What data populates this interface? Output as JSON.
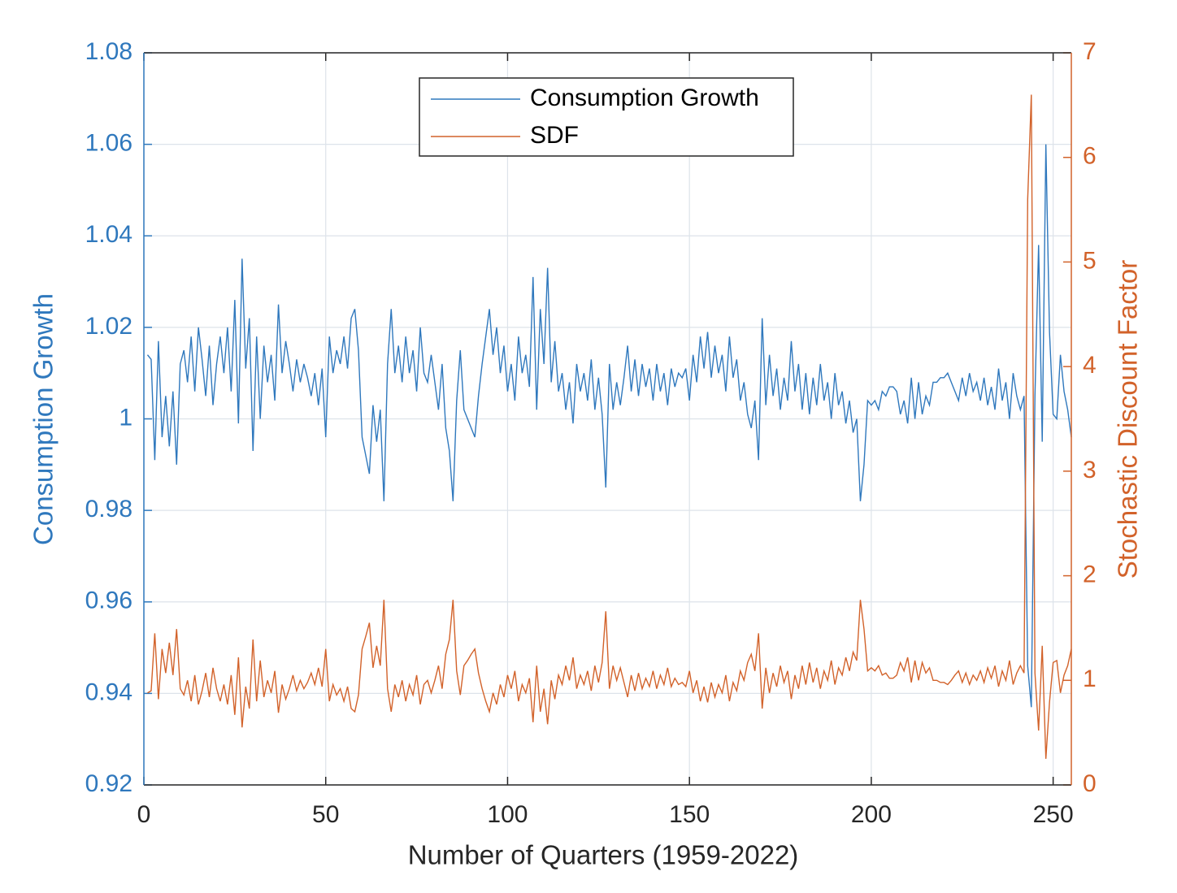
{
  "chart_data": {
    "type": "line",
    "xlabel": "Number of Quarters (1959-2022)",
    "ylabel": "Consumption Growth",
    "y2label": "Stochastic Discount Factor",
    "xlim": [
      0,
      255
    ],
    "xticks": [
      0,
      50,
      100,
      150,
      200,
      250
    ],
    "ylim": [
      0.92,
      1.08
    ],
    "yticks": [
      0.92,
      0.94,
      0.96,
      0.98,
      1,
      1.02,
      1.04,
      1.06,
      1.08
    ],
    "y2lim": [
      0,
      7
    ],
    "y2ticks": [
      0,
      1,
      2,
      3,
      4,
      5,
      6,
      7
    ],
    "grid": true,
    "legend": "top",
    "x": [
      1,
      2,
      3,
      4,
      5,
      6,
      7,
      8,
      9,
      10,
      11,
      12,
      13,
      14,
      15,
      16,
      17,
      18,
      19,
      20,
      21,
      22,
      23,
      24,
      25,
      26,
      27,
      28,
      29,
      30,
      31,
      32,
      33,
      34,
      35,
      36,
      37,
      38,
      39,
      40,
      41,
      42,
      43,
      44,
      45,
      46,
      47,
      48,
      49,
      50,
      51,
      52,
      53,
      54,
      55,
      56,
      57,
      58,
      59,
      60,
      61,
      62,
      63,
      64,
      65,
      66,
      67,
      68,
      69,
      70,
      71,
      72,
      73,
      74,
      75,
      76,
      77,
      78,
      79,
      80,
      81,
      82,
      83,
      84,
      85,
      86,
      87,
      88,
      89,
      90,
      91,
      92,
      93,
      94,
      95,
      96,
      97,
      98,
      99,
      100,
      101,
      102,
      103,
      104,
      105,
      106,
      107,
      108,
      109,
      110,
      111,
      112,
      113,
      114,
      115,
      116,
      117,
      118,
      119,
      120,
      121,
      122,
      123,
      124,
      125,
      126,
      127,
      128,
      129,
      130,
      131,
      132,
      133,
      134,
      135,
      136,
      137,
      138,
      139,
      140,
      141,
      142,
      143,
      144,
      145,
      146,
      147,
      148,
      149,
      150,
      151,
      152,
      153,
      154,
      155,
      156,
      157,
      158,
      159,
      160,
      161,
      162,
      163,
      164,
      165,
      166,
      167,
      168,
      169,
      170,
      171,
      172,
      173,
      174,
      175,
      176,
      177,
      178,
      179,
      180,
      181,
      182,
      183,
      184,
      185,
      186,
      187,
      188,
      189,
      190,
      191,
      192,
      193,
      194,
      195,
      196,
      197,
      198,
      199,
      200,
      201,
      202,
      203,
      204,
      205,
      206,
      207,
      208,
      209,
      210,
      211,
      212,
      213,
      214,
      215,
      216,
      217,
      218,
      219,
      220,
      221,
      222,
      223,
      224,
      225,
      226,
      227,
      228,
      229,
      230,
      231,
      232,
      233,
      234,
      235,
      236,
      237,
      238,
      239,
      240,
      241,
      242,
      243,
      244,
      245,
      246,
      247,
      248,
      249,
      250,
      251,
      252,
      253,
      254,
      255
    ],
    "series": [
      {
        "name": "Consumption Growth",
        "color": "#2f78bd",
        "values": [
          1.014,
          1.013,
          0.991,
          1.017,
          0.996,
          1.005,
          0.994,
          1.006,
          0.99,
          1.012,
          1.015,
          1.008,
          1.018,
          1.006,
          1.02,
          1.013,
          1.005,
          1.016,
          1.003,
          1.012,
          1.018,
          1.01,
          1.02,
          1.006,
          1.026,
          0.999,
          1.035,
          1.011,
          1.022,
          0.993,
          1.018,
          1.0,
          1.016,
          1.008,
          1.014,
          1.004,
          1.025,
          1.01,
          1.017,
          1.012,
          1.006,
          1.013,
          1.008,
          1.012,
          1.009,
          1.005,
          1.01,
          1.003,
          1.011,
          0.996,
          1.018,
          1.01,
          1.015,
          1.012,
          1.018,
          1.011,
          1.022,
          1.024,
          1.015,
          0.996,
          0.992,
          0.988,
          1.003,
          0.995,
          1.002,
          0.982,
          1.012,
          1.024,
          1.01,
          1.016,
          1.008,
          1.018,
          1.01,
          1.015,
          1.006,
          1.02,
          1.01,
          1.008,
          1.014,
          1.008,
          1.002,
          1.012,
          0.998,
          0.993,
          0.982,
          1.004,
          1.015,
          1.002,
          1.0,
          0.998,
          0.996,
          1.005,
          1.012,
          1.018,
          1.024,
          1.014,
          1.02,
          1.01,
          1.016,
          1.006,
          1.012,
          1.004,
          1.018,
          1.01,
          1.014,
          1.007,
          1.031,
          1.002,
          1.024,
          1.012,
          1.033,
          1.008,
          1.017,
          1.006,
          1.01,
          1.002,
          1.008,
          0.999,
          1.012,
          1.006,
          1.01,
          1.004,
          1.013,
          1.002,
          1.009,
          1.001,
          0.985,
          1.012,
          1.002,
          1.008,
          1.003,
          1.009,
          1.016,
          1.006,
          1.013,
          1.005,
          1.012,
          1.007,
          1.011,
          1.004,
          1.012,
          1.006,
          1.01,
          1.003,
          1.011,
          1.007,
          1.01,
          1.009,
          1.011,
          1.004,
          1.014,
          1.008,
          1.018,
          1.011,
          1.019,
          1.009,
          1.016,
          1.01,
          1.014,
          1.006,
          1.018,
          1.009,
          1.013,
          1.004,
          1.008,
          1.001,
          0.998,
          1.004,
          0.991,
          1.022,
          1.003,
          1.014,
          1.005,
          1.011,
          1.002,
          1.009,
          1.004,
          1.017,
          1.006,
          1.012,
          1.002,
          1.01,
          1.001,
          1.009,
          1.003,
          1.012,
          1.004,
          1.008,
          1.0,
          1.01,
          1.003,
          1.006,
          0.999,
          1.004,
          0.997,
          1.0,
          0.982,
          0.99,
          1.004,
          1.003,
          1.004,
          1.002,
          1.006,
          1.005,
          1.007,
          1.007,
          1.006,
          1.001,
          1.004,
          0.999,
          1.009,
          1.0,
          1.008,
          1.001,
          1.005,
          1.003,
          1.008,
          1.008,
          1.009,
          1.009,
          1.01,
          1.008,
          1.006,
          1.004,
          1.009,
          1.005,
          1.01,
          1.006,
          1.008,
          1.004,
          1.009,
          1.003,
          1.007,
          1.002,
          1.011,
          1.004,
          1.008,
          1.0,
          1.01,
          1.005,
          1.002,
          1.005,
          0.946,
          0.937,
          1.005,
          1.038,
          0.995,
          1.06,
          1.019,
          1.001,
          1.0,
          1.014,
          1.006,
          1.002,
          0.996
        ]
      },
      {
        "name": "SDF",
        "color": "#d2622a",
        "axis": "y2",
        "values": [
          0.88,
          0.9,
          1.45,
          0.82,
          1.3,
          1.07,
          1.36,
          1.05,
          1.49,
          0.92,
          0.86,
          1.0,
          0.8,
          1.05,
          0.77,
          0.9,
          1.07,
          0.84,
          1.12,
          0.92,
          0.8,
          0.96,
          0.77,
          1.05,
          0.67,
          1.22,
          0.55,
          0.94,
          0.73,
          1.39,
          0.8,
          1.19,
          0.84,
          1.0,
          0.88,
          1.09,
          0.69,
          0.96,
          0.82,
          0.92,
          1.05,
          0.9,
          1.0,
          0.92,
          0.98,
          1.07,
          0.96,
          1.12,
          0.94,
          1.3,
          0.8,
          0.96,
          0.86,
          0.92,
          0.8,
          0.94,
          0.73,
          0.7,
          0.86,
          1.3,
          1.42,
          1.55,
          1.12,
          1.33,
          1.14,
          1.77,
          0.92,
          0.7,
          0.96,
          0.84,
          1.0,
          0.8,
          0.96,
          0.86,
          1.05,
          0.77,
          0.96,
          1.0,
          0.88,
          1.0,
          1.14,
          0.92,
          1.25,
          1.39,
          1.77,
          1.09,
          0.86,
          1.14,
          1.19,
          1.25,
          1.3,
          1.07,
          0.92,
          0.8,
          0.7,
          0.88,
          0.77,
          0.96,
          0.84,
          1.05,
          0.92,
          1.09,
          0.8,
          0.96,
          0.88,
          1.02,
          0.6,
          1.14,
          0.7,
          0.92,
          0.58,
          1.0,
          0.82,
          1.05,
          0.96,
          1.14,
          1.0,
          1.22,
          0.92,
          1.05,
          0.96,
          1.09,
          0.9,
          1.14,
          0.98,
          1.17,
          1.66,
          0.92,
          1.14,
          1.0,
          1.12,
          0.98,
          0.84,
          1.05,
          0.9,
          1.07,
          0.92,
          1.02,
          0.94,
          1.09,
          0.92,
          1.05,
          0.96,
          1.12,
          0.94,
          1.02,
          0.96,
          0.98,
          0.94,
          1.09,
          0.88,
          1.0,
          0.8,
          0.94,
          0.79,
          0.98,
          0.84,
          0.96,
          0.88,
          1.05,
          0.8,
          0.98,
          0.9,
          1.09,
          1.0,
          1.17,
          1.25,
          1.09,
          1.45,
          0.73,
          1.12,
          0.88,
          1.07,
          0.94,
          1.14,
          0.98,
          1.09,
          0.82,
          1.05,
          0.92,
          1.14,
          0.96,
          1.17,
          0.98,
          1.12,
          0.92,
          1.09,
          1.0,
          1.19,
          0.96,
          1.12,
          1.05,
          1.22,
          1.09,
          1.27,
          1.19,
          1.77,
          1.49,
          1.09,
          1.12,
          1.09,
          1.14,
          1.05,
          1.07,
          1.02,
          1.02,
          1.05,
          1.17,
          1.09,
          1.22,
          0.98,
          1.19,
          1.0,
          1.17,
          1.07,
          1.12,
          1.0,
          1.0,
          0.98,
          0.98,
          0.96,
          1.0,
          1.05,
          1.09,
          0.98,
          1.07,
          0.96,
          1.05,
          1.0,
          1.09,
          0.98,
          1.12,
          1.02,
          1.14,
          0.94,
          1.09,
          1.0,
          1.19,
          0.96,
          1.07,
          1.14,
          1.07,
          5.6,
          6.6,
          1.07,
          0.52,
          1.33,
          0.25,
          0.79,
          1.17,
          1.19,
          0.88,
          1.05,
          1.14,
          1.3
        ]
      }
    ]
  }
}
